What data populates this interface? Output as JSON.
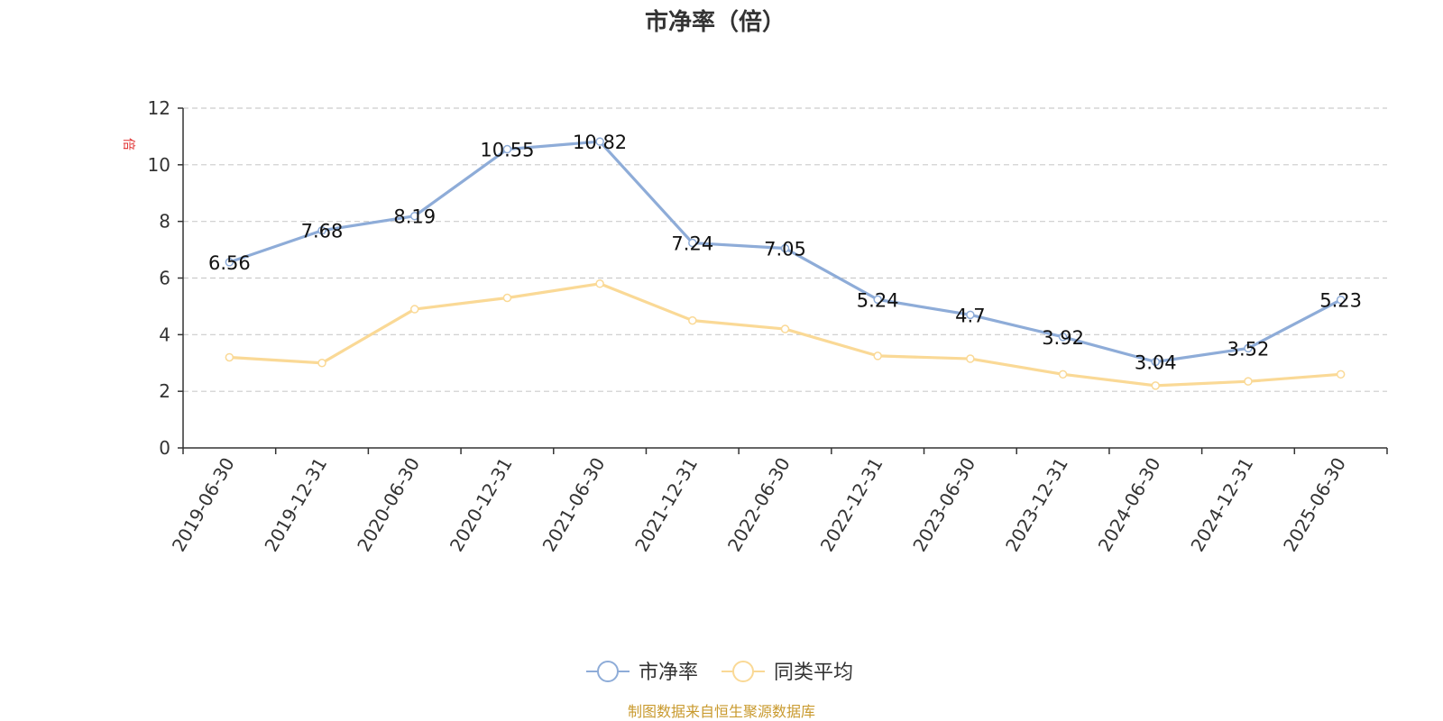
{
  "chart_data": {
    "type": "line",
    "title": "市净率（倍）",
    "unit_label": "倍",
    "categories": [
      "2019-06-30",
      "2019-12-31",
      "2020-06-30",
      "2020-12-31",
      "2021-06-30",
      "2021-12-31",
      "2022-06-30",
      "2022-12-31",
      "2023-06-30",
      "2023-12-31",
      "2024-06-30",
      "2024-12-31",
      "2025-06-30"
    ],
    "ylim": [
      0,
      12
    ],
    "yticks": [
      0,
      2,
      4,
      6,
      8,
      10,
      12
    ],
    "grid": true,
    "legend_position": "bottom",
    "series": [
      {
        "name": "市净率",
        "color": "#8eacd8",
        "show_labels": true,
        "values": [
          6.56,
          7.68,
          8.19,
          10.55,
          10.82,
          7.24,
          7.05,
          5.24,
          4.7,
          3.92,
          3.04,
          3.52,
          5.23
        ]
      },
      {
        "name": "同类平均",
        "color": "#fad996",
        "show_labels": false,
        "values": [
          3.2,
          3.0,
          4.9,
          5.3,
          5.8,
          4.5,
          4.2,
          3.25,
          3.15,
          2.6,
          2.2,
          2.35,
          2.6
        ]
      }
    ],
    "source": "制图数据来自恒生聚源数据库"
  }
}
